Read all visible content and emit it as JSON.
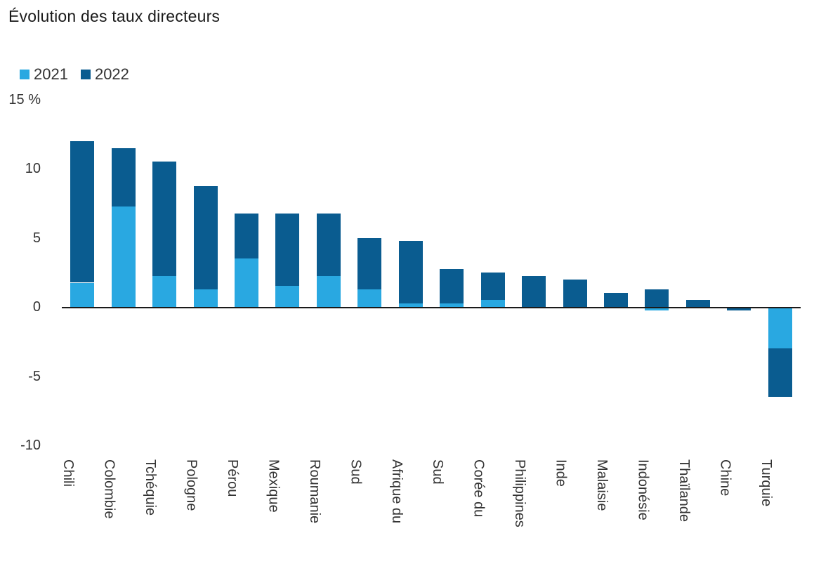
{
  "title": "Évolution des taux directeurs",
  "chart_data": {
    "type": "bar",
    "stacked": true,
    "title": "Évolution des taux directeurs",
    "xlabel": "",
    "ylabel": "%",
    "ylim": [
      -10,
      15
    ],
    "grid": false,
    "legend_position": "top-left",
    "categories": [
      "Chili",
      "Colombie",
      "Tchéquie",
      "Pologne",
      "Pérou",
      "Mexique",
      "Roumanie",
      "Sud",
      "Afrique du",
      "Sud",
      "Corée du",
      "Philippines",
      "Inde",
      "Malaisie",
      "Indonésie",
      "Thaïlande",
      "Chine",
      "Turquie"
    ],
    "series": [
      {
        "name": "2021",
        "color": "#29a8e1",
        "values": [
          1.75,
          7.25,
          2.25,
          1.25,
          3.5,
          1.5,
          2.25,
          1.25,
          0.25,
          0.25,
          0.5,
          0,
          0,
          0,
          -0.25,
          0,
          0,
          -3.0
        ]
      },
      {
        "name": "2022",
        "color": "#0a5c90",
        "values": [
          10.25,
          4.25,
          8.25,
          7.5,
          3.25,
          5.25,
          4.5,
          3.75,
          4.5,
          2.5,
          2.0,
          2.25,
          2.0,
          1.0,
          1.25,
          0.5,
          -0.25,
          -3.5
        ]
      }
    ],
    "y_ticks": [
      {
        "label": "15 %",
        "value": 15
      },
      {
        "label": "10",
        "value": 10
      },
      {
        "label": "5",
        "value": 5
      },
      {
        "label": "0",
        "value": 0
      },
      {
        "label": "-5",
        "value": -5
      },
      {
        "label": "-10",
        "value": -10
      }
    ]
  }
}
